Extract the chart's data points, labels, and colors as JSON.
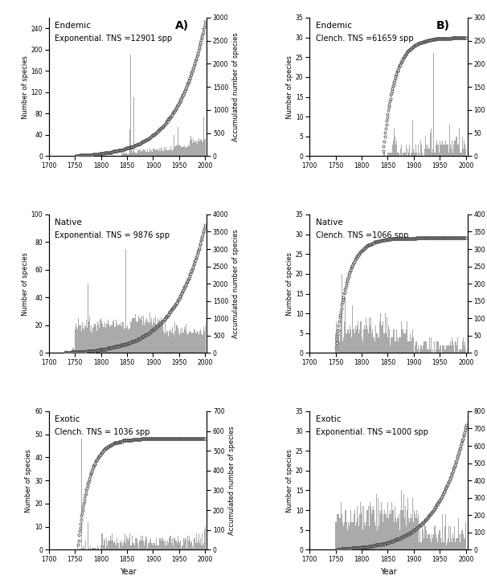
{
  "panels": [
    {
      "row": 0,
      "col": 0,
      "label1": "Endemic",
      "label2": "Exponential. TNS =12901 spp",
      "tag": "A)",
      "ylim_left": [
        0,
        260
      ],
      "ylim_right": [
        0,
        3000
      ],
      "yticks_left": [
        0,
        40,
        80,
        120,
        160,
        200,
        240
      ],
      "yticks_right": [
        0,
        500,
        1000,
        1500,
        2000,
        2500,
        3000
      ],
      "bar_pattern": "A_endemic",
      "acc_model": "exponential",
      "acc_max": 2900,
      "acc_start_year": 1750,
      "bar_start_year": 1750
    },
    {
      "row": 0,
      "col": 1,
      "label1": "Endemic",
      "label2": "Clench. TNS =61659 spp",
      "tag": "B)",
      "ylim_left": [
        0,
        35
      ],
      "ylim_right": [
        0,
        300
      ],
      "yticks_left": [
        0,
        5,
        10,
        15,
        20,
        25,
        30,
        35
      ],
      "yticks_right": [
        0,
        50,
        100,
        150,
        200,
        250,
        300
      ],
      "bar_pattern": "B_endemic",
      "acc_model": "clench",
      "acc_max": 255,
      "acc_start_year": 1840,
      "bar_start_year": 1840
    },
    {
      "row": 1,
      "col": 0,
      "label1": "Native",
      "label2": "Exponential. TNS = 9876 spp",
      "tag": null,
      "ylim_left": [
        0,
        100
      ],
      "ylim_right": [
        0,
        4000
      ],
      "yticks_left": [
        0,
        20,
        40,
        60,
        80,
        100
      ],
      "yticks_right": [
        0,
        500,
        1000,
        1500,
        2000,
        2500,
        3000,
        3500,
        4000
      ],
      "bar_pattern": "A_native",
      "acc_model": "exponential",
      "acc_max": 3700,
      "acc_start_year": 1730,
      "bar_start_year": 1730
    },
    {
      "row": 1,
      "col": 1,
      "label1": "Native",
      "label2": "Clench. TNS =1066 spp",
      "tag": null,
      "ylim_left": [
        0,
        35
      ],
      "ylim_right": [
        0,
        400
      ],
      "yticks_left": [
        0,
        5,
        10,
        15,
        20,
        25,
        30,
        35
      ],
      "yticks_right": [
        0,
        50,
        100,
        150,
        200,
        250,
        300,
        350,
        400
      ],
      "bar_pattern": "B_native",
      "acc_model": "clench",
      "acc_max": 330,
      "acc_start_year": 1750,
      "bar_start_year": 1750
    },
    {
      "row": 2,
      "col": 0,
      "label1": "Exotic",
      "label2": "Clench. TNS = 1036 spp",
      "tag": null,
      "ylim_left": [
        0,
        60
      ],
      "ylim_right": [
        0,
        700
      ],
      "yticks_left": [
        0,
        10,
        20,
        30,
        40,
        50,
        60
      ],
      "yticks_right": [
        0,
        100,
        200,
        300,
        400,
        500,
        600,
        700
      ],
      "bar_pattern": "A_exotic",
      "acc_model": "clench",
      "acc_max": 560,
      "acc_start_year": 1755,
      "bar_start_year": 1755
    },
    {
      "row": 2,
      "col": 1,
      "label1": "Exotic",
      "label2": "Exponential. TNS =1000 spp",
      "tag": null,
      "ylim_left": [
        0,
        35
      ],
      "ylim_right": [
        0,
        800
      ],
      "yticks_left": [
        0,
        5,
        10,
        15,
        20,
        25,
        30,
        35
      ],
      "yticks_right": [
        0,
        100,
        200,
        300,
        400,
        500,
        600,
        700,
        800
      ],
      "bar_pattern": "B_exotic",
      "acc_model": "exponential",
      "acc_max": 720,
      "acc_start_year": 1750,
      "bar_start_year": 1750
    }
  ],
  "bar_color": "#aaaaaa",
  "circle_edgecolor": "#333333",
  "circle_facecolor": "white",
  "xlabel": "Year",
  "ylabel_left": "Number of species",
  "ylabel_right": "Accumulated number of species",
  "xticks": [
    1700,
    1750,
    1800,
    1850,
    1900,
    1950,
    2000
  ]
}
